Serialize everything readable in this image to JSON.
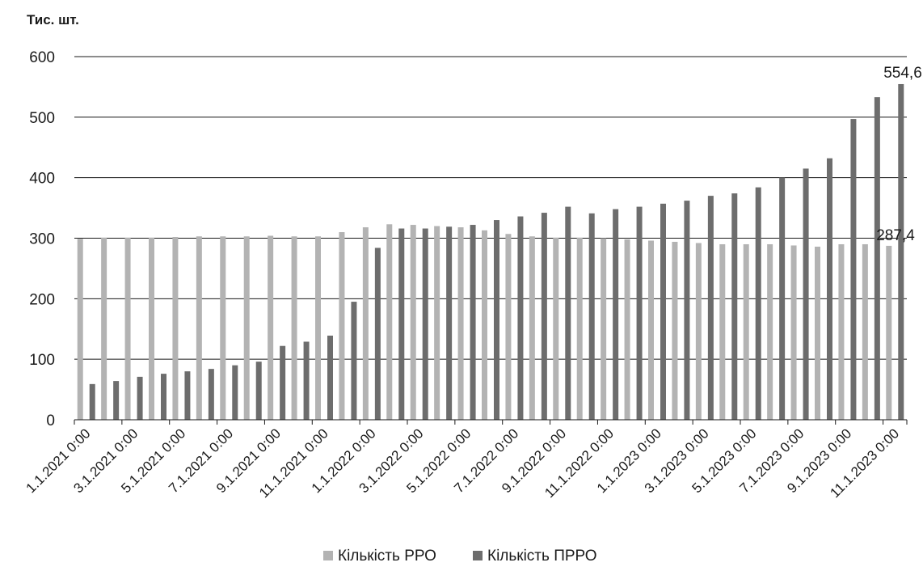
{
  "chart_data": {
    "type": "bar",
    "ylabel": "Тис. шт.",
    "ylim": [
      0,
      600
    ],
    "yticks": [
      "0",
      "100",
      "200",
      "300",
      "400",
      "500",
      "600"
    ],
    "grid": true,
    "legend_position": "bottom",
    "categories": [
      "1.1.2021 0:00",
      "2.1.2021 0:00",
      "3.1.2021 0:00",
      "4.1.2021 0:00",
      "5.1.2021 0:00",
      "6.1.2021 0:00",
      "7.1.2021 0:00",
      "8.1.2021 0:00",
      "9.1.2021 0:00",
      "10.1.2021 0:00",
      "11.1.2021 0:00",
      "12.1.2021 0:00",
      "1.1.2022 0:00",
      "2.1.2022 0:00",
      "3.1.2022 0:00",
      "4.1.2022 0:00",
      "5.1.2022 0:00",
      "6.1.2022 0:00",
      "7.1.2022 0:00",
      "8.1.2022 0:00",
      "9.1.2022 0:00",
      "10.1.2022 0:00",
      "11.1.2022 0:00",
      "12.1.2022 0:00",
      "1.1.2023 0:00",
      "2.1.2023 0:00",
      "3.1.2023 0:00",
      "4.1.2023 0:00",
      "5.1.2023 0:00",
      "6.1.2023 0:00",
      "7.1.2023 0:00",
      "8.1.2023 0:00",
      "9.1.2023 0:00",
      "10.1.2023 0:00",
      "11.1.2023 0:00"
    ],
    "x_tick_labels": [
      "1.1.2021 0:00",
      "3.1.2021 0:00",
      "5.1.2021 0:00",
      "7.1.2021 0:00",
      "9.1.2021 0:00",
      "11.1.2021 0:00",
      "1.1.2022 0:00",
      "3.1.2022 0:00",
      "5.1.2022 0:00",
      "7.1.2022 0:00",
      "9.1.2022 0:00",
      "11.1.2022 0:00",
      "1.1.2023 0:00",
      "3.1.2023 0:00",
      "5.1.2023 0:00",
      "7.1.2023 0:00",
      "9.1.2023 0:00",
      "11.1.2023 0:00"
    ],
    "series": [
      {
        "name": "Кількість РРО",
        "color": "#b3b3b3",
        "values": [
          299,
          301,
          301,
          301,
          302,
          303,
          303,
          303,
          304,
          303,
          303,
          310,
          318,
          323,
          322,
          320,
          318,
          313,
          307,
          303,
          301,
          301,
          300,
          298,
          296,
          294,
          292,
          290,
          290,
          290,
          288,
          286,
          290,
          290,
          287.4
        ]
      },
      {
        "name": "Кількість ПРРО",
        "color": "#6d6d6d",
        "values": [
          59,
          64,
          71,
          76,
          80,
          84,
          90,
          96,
          122,
          129,
          139,
          195,
          284,
          316,
          316,
          319,
          322,
          330,
          336,
          342,
          352,
          341,
          348,
          352,
          357,
          362,
          370,
          374,
          384,
          400,
          415,
          432,
          497,
          533,
          554.6
        ]
      }
    ],
    "data_labels": [
      {
        "series": 1,
        "index": 34,
        "text": "554,6"
      },
      {
        "series": 0,
        "index": 34,
        "text": "287,4"
      }
    ]
  }
}
